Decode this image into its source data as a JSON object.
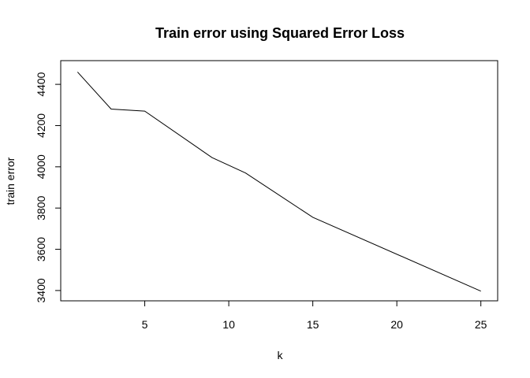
{
  "chart_data": {
    "type": "line",
    "title": "Train error using Squared Error Loss",
    "xlabel": "k",
    "ylabel": "train error",
    "x": [
      1,
      3,
      5,
      9,
      11,
      15,
      25
    ],
    "series": [
      {
        "values": [
          4460,
          4280,
          4270,
          4045,
          3970,
          3755,
          3397
        ]
      }
    ],
    "xlim": [
      0,
      26
    ],
    "ylim": [
      3350,
      4515
    ],
    "xticks": [
      5,
      10,
      15,
      20,
      25
    ],
    "yticks": [
      3400,
      3600,
      3800,
      4000,
      4200,
      4400
    ],
    "grid": false,
    "legend": "none",
    "line_color": "#000000"
  }
}
